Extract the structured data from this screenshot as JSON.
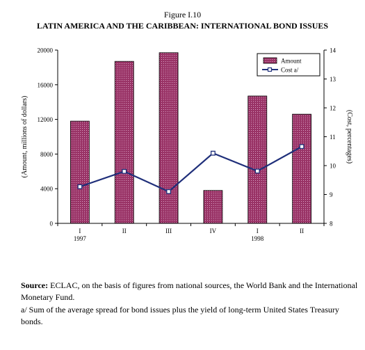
{
  "figure_number": "Figure I.10",
  "figure_title": "LATIN AMERICA AND THE CARIBBEAN: INTERNATIONAL BOND ISSUES",
  "chart_data": {
    "type": "bar",
    "categories": [
      {
        "label": "I",
        "year": "1997"
      },
      {
        "label": "II",
        "year": ""
      },
      {
        "label": "III",
        "year": ""
      },
      {
        "label": "IV",
        "year": ""
      },
      {
        "label": "I",
        "year": "1998"
      },
      {
        "label": "II",
        "year": ""
      }
    ],
    "series": [
      {
        "name": "Amount",
        "type": "bar",
        "axis": "left",
        "color": "#993366",
        "values": [
          11800,
          18700,
          19700,
          3800,
          14700,
          12600
        ]
      },
      {
        "name": "Cost a/",
        "type": "line",
        "axis": "right",
        "color": "#1f2f7a",
        "values": [
          9.27,
          9.8,
          9.1,
          10.43,
          9.81,
          10.66
        ]
      }
    ],
    "ylabel": "Amount, millions of dollars",
    "ylabel_right": "Cost, percentages",
    "ylim": [
      0,
      20000
    ],
    "ylim_right": [
      8,
      14
    ],
    "yticks": [
      "0",
      "4000",
      "8000",
      "12000",
      "16000",
      "20000"
    ],
    "yticks_right": [
      "8",
      "9",
      "10",
      "11",
      "12",
      "13",
      "14"
    ],
    "legend_position": "top-right",
    "grid": false
  },
  "notes": {
    "source_label": "Source:",
    "source_text": " ECLAC, on the basis of figures from national sources, the World Bank and the International  Monetary Fund.",
    "footnote": "a/ Sum of the average spread for bond issues  plus the yield of long-term United States Treasury bonds."
  }
}
